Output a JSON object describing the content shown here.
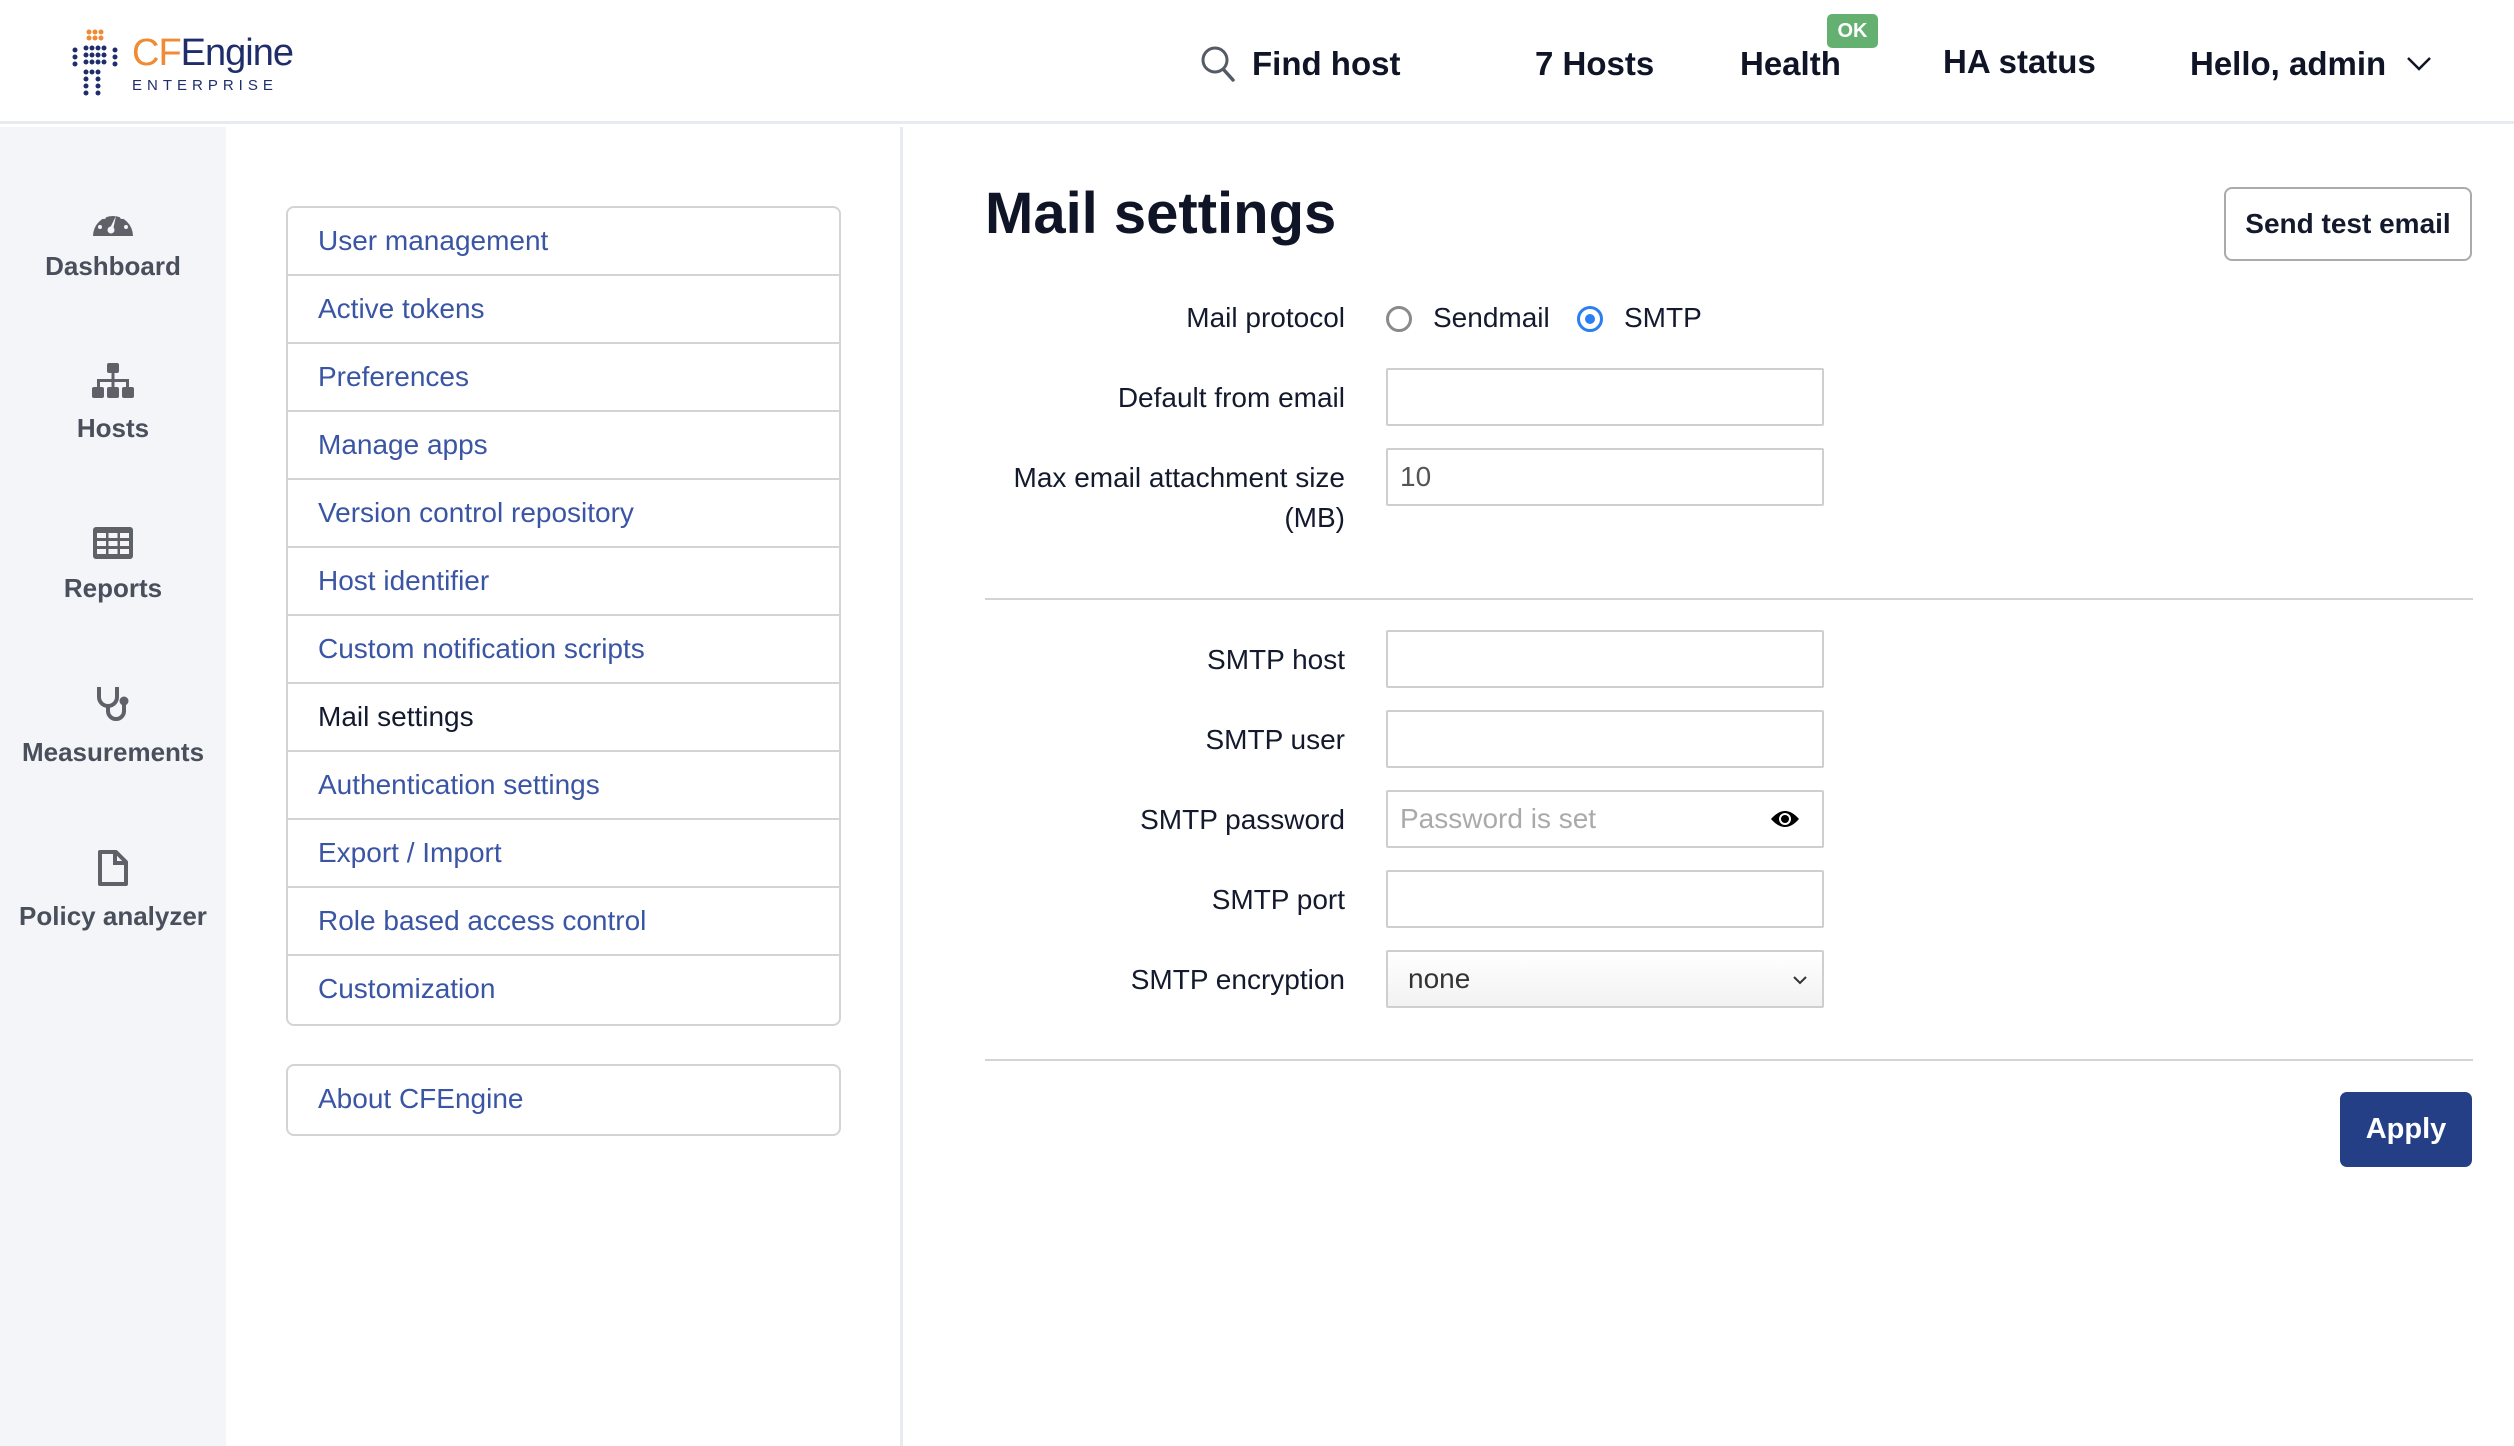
{
  "header": {
    "logo": {
      "brand_cf": "CF",
      "brand_engine": "Engine",
      "subtitle": "ENTERPRISE"
    },
    "find_host": "Find host",
    "hosts": "7 Hosts",
    "health": "Health",
    "health_badge": "OK",
    "ha_status": "HA status",
    "user_menu": "Hello, admin"
  },
  "sidebar": {
    "items": [
      {
        "label": "Dashboard",
        "icon": "dashboard-icon"
      },
      {
        "label": "Hosts",
        "icon": "sitemap-icon"
      },
      {
        "label": "Reports",
        "icon": "table-icon"
      },
      {
        "label": "Measurements",
        "icon": "stethoscope-icon"
      },
      {
        "label": "Policy analyzer",
        "icon": "file-icon"
      }
    ]
  },
  "settings_menu": {
    "items": [
      "User management",
      "Active tokens",
      "Preferences",
      "Manage apps",
      "Version control repository",
      "Host identifier",
      "Custom notification scripts",
      "Mail settings",
      "Authentication settings",
      "Export / Import",
      "Role based access control",
      "Customization"
    ],
    "active": "Mail settings",
    "about": "About CFEngine"
  },
  "main": {
    "title": "Mail settings",
    "send_test_email": "Send test email",
    "mail_protocol": {
      "label": "Mail protocol",
      "options": [
        "Sendmail",
        "SMTP"
      ],
      "selected": "SMTP"
    },
    "default_from_email": {
      "label": "Default from email",
      "value": ""
    },
    "max_attachment": {
      "label_line1": "Max email attachment size",
      "label_line2": "(MB)",
      "value": "10"
    },
    "smtp_host": {
      "label": "SMTP host",
      "value": ""
    },
    "smtp_user": {
      "label": "SMTP user",
      "value": ""
    },
    "smtp_password": {
      "label": "SMTP password",
      "placeholder": "Password is set"
    },
    "smtp_port": {
      "label": "SMTP port",
      "value": ""
    },
    "smtp_encryption": {
      "label": "SMTP encryption",
      "value": "none"
    },
    "apply": "Apply"
  },
  "colors": {
    "accent": "#253f86",
    "link": "#3a55a4",
    "ok_badge": "#63b070",
    "radio": "#2b7ff0",
    "logo_orange": "#f08a33",
    "logo_navy": "#1f2e6b"
  }
}
